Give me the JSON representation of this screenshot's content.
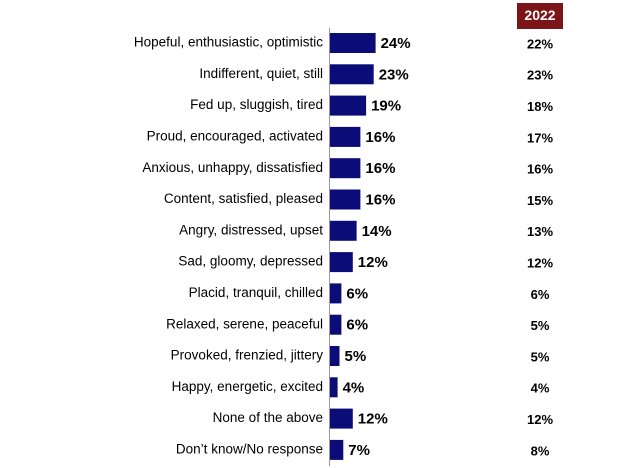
{
  "chart_data": {
    "type": "bar",
    "orientation": "horizontal",
    "color": "#0c0c78",
    "categories": [
      "Hopeful, enthusiastic, optimistic",
      "Indifferent, quiet, still",
      "Fed up, sluggish, tired",
      "Proud, encouraged, activated",
      "Anxious, unhappy, dissatisfied",
      "Content, satisfied, pleased",
      "Angry, distressed, upset",
      "Sad, gloomy, depressed",
      "Placid, tranquil, chilled",
      "Relaxed, serene, peaceful",
      "Provoked, frenzied, jittery",
      "Happy, energetic, excited",
      "None of the above",
      "Don’t know/No response"
    ],
    "values": [
      24,
      23,
      19,
      16,
      16,
      16,
      14,
      12,
      6,
      6,
      5,
      4,
      12,
      7
    ],
    "value_labels": [
      "24%",
      "23%",
      "19%",
      "16%",
      "16%",
      "16%",
      "14%",
      "12%",
      "6%",
      "6%",
      "5%",
      "4%",
      "12%",
      "7%"
    ],
    "comparison": {
      "label": "2022",
      "color": "#7b1518",
      "values": [
        22,
        23,
        18,
        17,
        16,
        15,
        13,
        12,
        6,
        5,
        5,
        4,
        12,
        8
      ],
      "value_labels": [
        "22%",
        "23%",
        "18%",
        "17%",
        "16%",
        "15%",
        "13%",
        "12%",
        "6%",
        "5%",
        "5%",
        "4%",
        "12%",
        "8%"
      ]
    }
  }
}
